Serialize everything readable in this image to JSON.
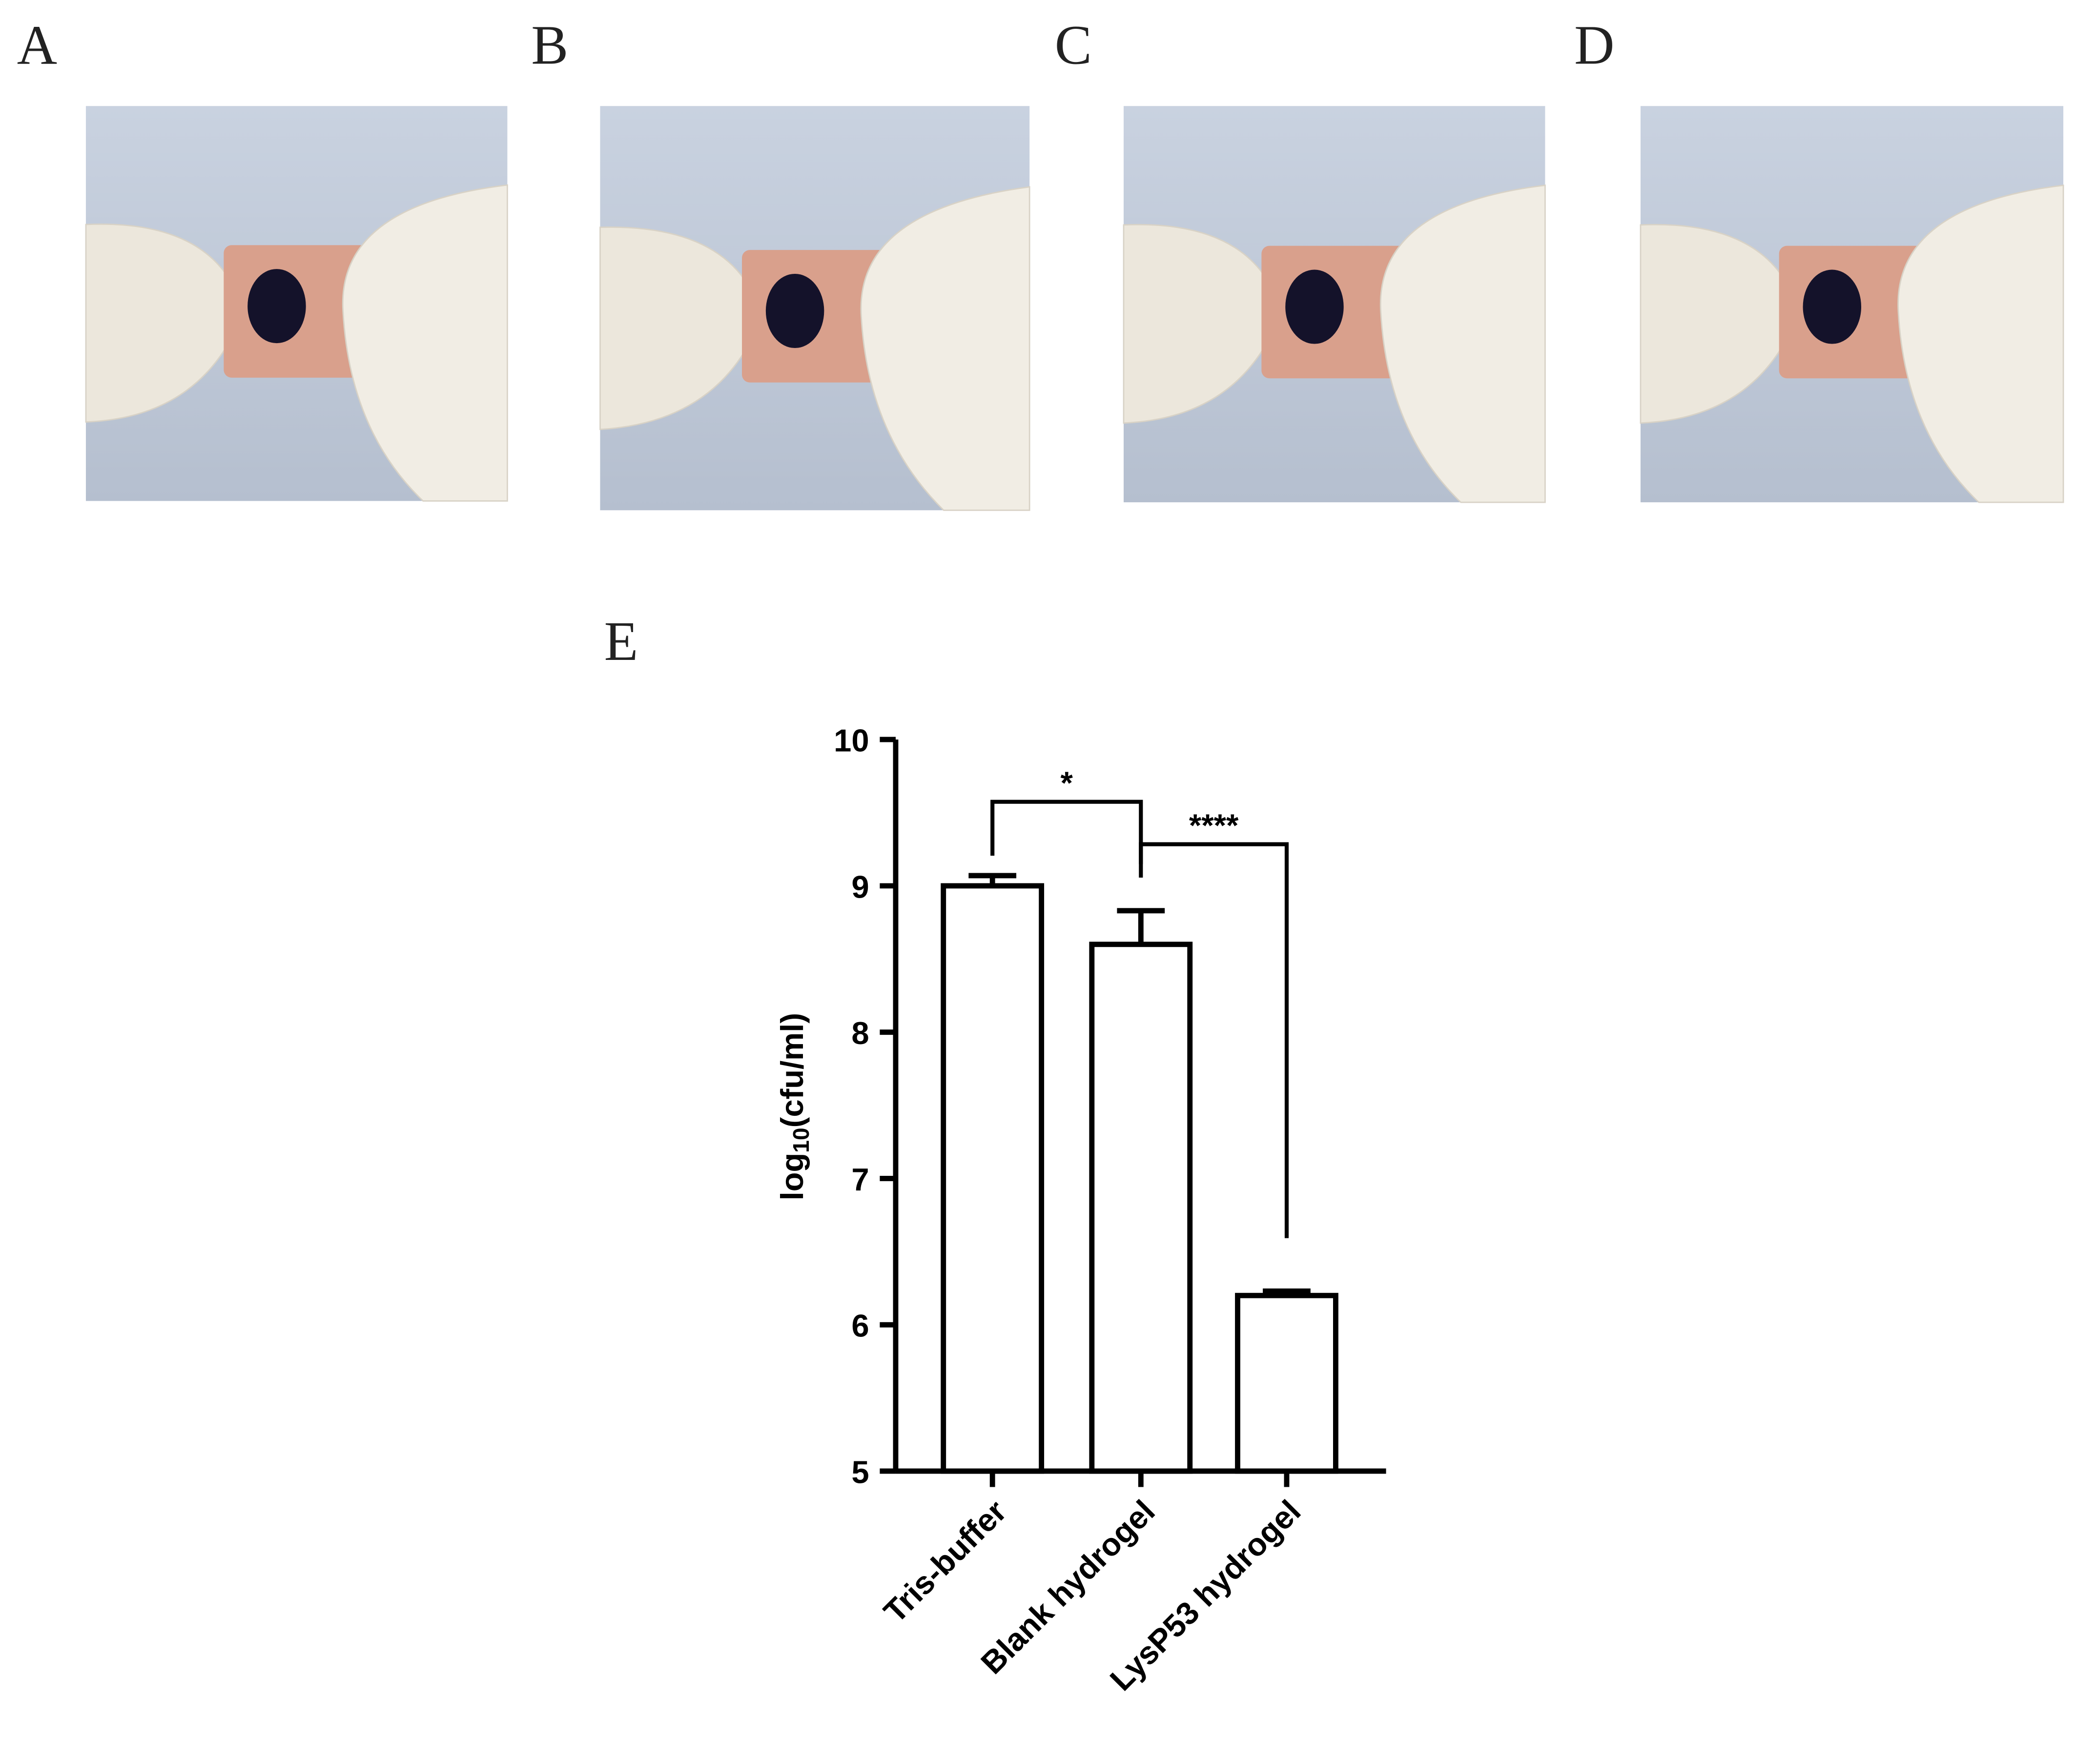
{
  "panel_labels": [
    "A",
    "B",
    "C",
    "D",
    "E"
  ],
  "chart_data": {
    "type": "bar",
    "ylabel_parts": [
      "log",
      "10",
      "(cfu/ml)"
    ],
    "categories": [
      "Tris-buffer",
      "Blank hydrogel",
      "LysP53 hydrogel"
    ],
    "values": [
      9.0,
      8.6,
      6.2
    ],
    "errors": [
      0.07,
      0.23,
      0.03
    ],
    "color": "#ffffff",
    "edge_color": "#000000",
    "ylim": [
      5,
      10
    ],
    "yticks": [
      5,
      6,
      7,
      8,
      9,
      10
    ],
    "annotations": [
      "*",
      "****"
    ]
  }
}
